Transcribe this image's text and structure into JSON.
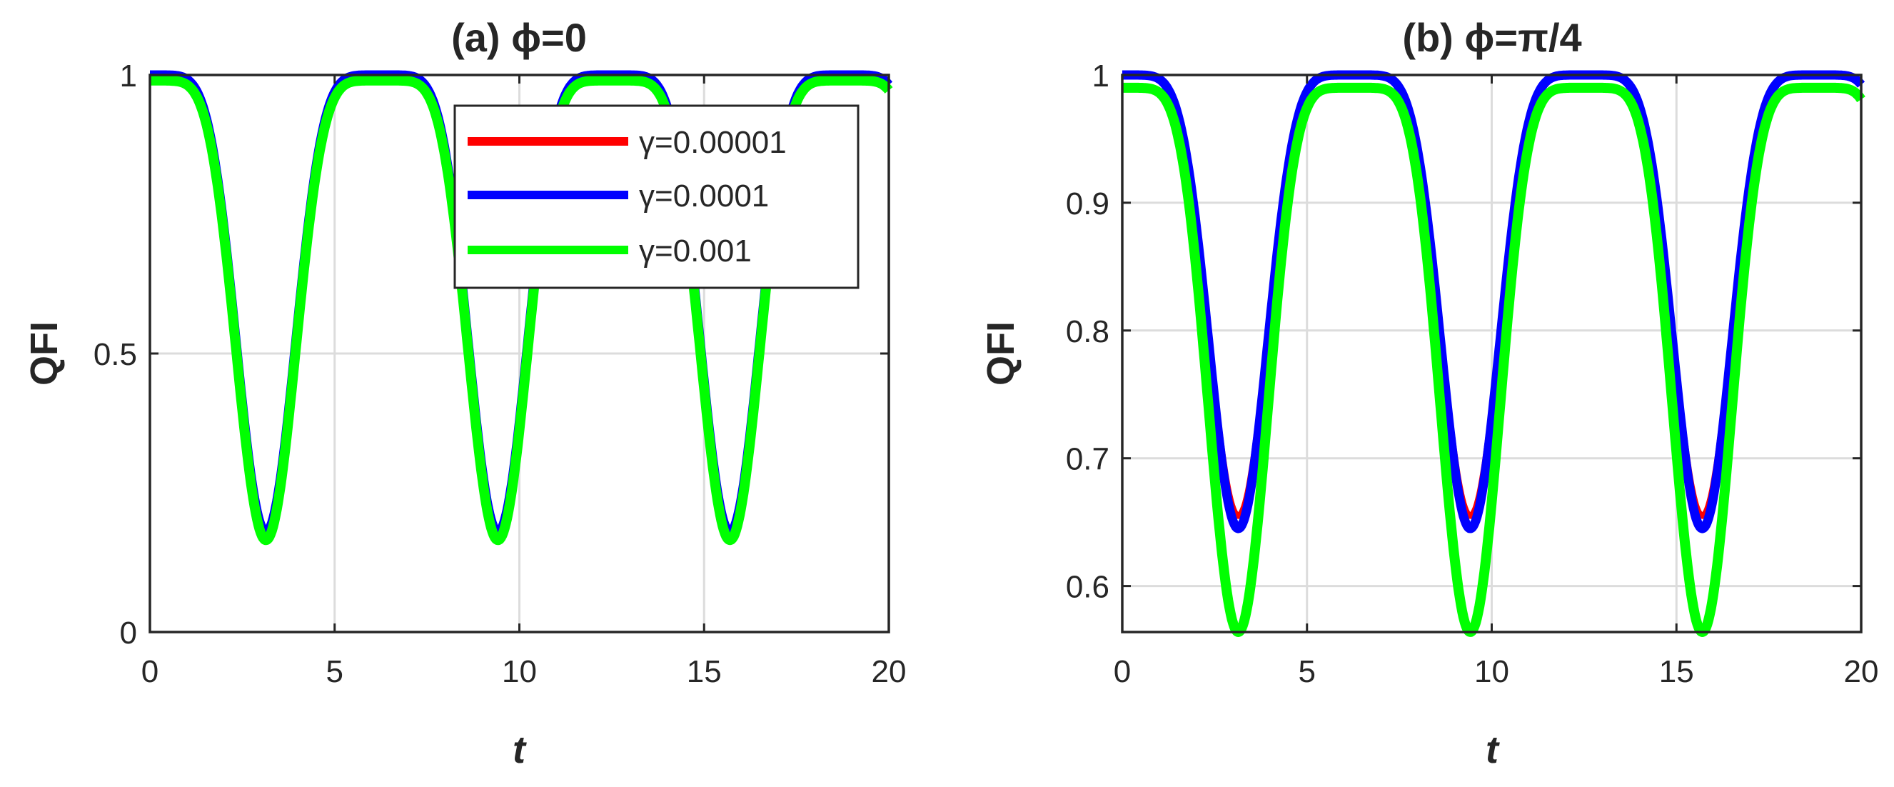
{
  "chart_data": [
    {
      "panel": "a",
      "type": "line",
      "title": "(a) ϕ=0",
      "xlabel": "t",
      "ylabel": "QFI",
      "xlim": [
        0,
        20
      ],
      "ylim": [
        0,
        1
      ],
      "xticks": [
        "0",
        "5",
        "10",
        "15",
        "20"
      ],
      "yticks": [
        "0",
        "0.5",
        "1"
      ],
      "xtick_values": [
        0,
        5,
        10,
        15,
        20
      ],
      "ytick_values": [
        0,
        0.5,
        1
      ],
      "grid": true,
      "legend_position": "top-right",
      "period": 6.28,
      "series": [
        {
          "name": "γ=0.00001",
          "color": "#ff0000",
          "line_width_rank": 1,
          "minimum": 0.18,
          "plateau_max": 1.0,
          "sample_points": {
            "x": [
              0,
              3.14,
              6.28,
              9.42,
              12.57,
              15.71,
              19.4
            ],
            "y": [
              1.0,
              0.18,
              1.0,
              0.18,
              1.0,
              0.18,
              0.99
            ]
          }
        },
        {
          "name": "γ=0.0001",
          "color": "#0000ff",
          "line_width_rank": 2,
          "minimum": 0.18,
          "plateau_max": 1.0,
          "sample_points": {
            "x": [
              0,
              3.14,
              6.28,
              9.42,
              12.57,
              15.71,
              19.4
            ],
            "y": [
              1.0,
              0.18,
              1.0,
              0.18,
              1.0,
              0.18,
              0.99
            ]
          }
        },
        {
          "name": "γ=0.001",
          "color": "#00ff00",
          "line_width_rank": 3,
          "minimum": 0.165,
          "plateau_max": 0.99,
          "sample_points": {
            "x": [
              0,
              3.14,
              6.28,
              9.42,
              12.57,
              15.71,
              19.4
            ],
            "y": [
              0.99,
              0.165,
              0.99,
              0.165,
              0.99,
              0.165,
              0.99
            ]
          }
        }
      ]
    },
    {
      "panel": "b",
      "type": "line",
      "title": "(b) ϕ=π/4",
      "xlabel": "t",
      "ylabel": "QFI",
      "xlim": [
        0,
        20
      ],
      "ylim": [
        0.564,
        1
      ],
      "xticks": [
        "0",
        "5",
        "10",
        "15",
        "20"
      ],
      "yticks": [
        "0.6",
        "0.7",
        "0.8",
        "0.9",
        "1"
      ],
      "xtick_values": [
        0,
        5,
        10,
        15,
        20
      ],
      "ytick_values": [
        0.6,
        0.7,
        0.8,
        0.9,
        1
      ],
      "grid": true,
      "legend_position": "none",
      "period": 6.28,
      "series": [
        {
          "name": "γ=0.00001",
          "color": "#ff0000",
          "line_width_rank": 1,
          "minimum": 0.655,
          "plateau_max": 1.0,
          "sample_points": {
            "x": [
              0,
              3.14,
              6.28,
              9.42,
              12.57,
              15.71,
              19.4
            ],
            "y": [
              1.0,
              0.655,
              1.0,
              0.655,
              1.0,
              0.655,
              1.0
            ]
          }
        },
        {
          "name": "γ=0.0001",
          "color": "#0000ff",
          "line_width_rank": 2,
          "minimum": 0.645,
          "plateau_max": 1.0,
          "sample_points": {
            "x": [
              0,
              3.14,
              6.28,
              9.42,
              12.57,
              15.71,
              19.4
            ],
            "y": [
              1.0,
              0.645,
              1.0,
              0.645,
              1.0,
              0.645,
              1.0
            ]
          }
        },
        {
          "name": "γ=0.001",
          "color": "#00ff00",
          "line_width_rank": 3,
          "minimum": 0.564,
          "plateau_max": 0.99,
          "sample_points": {
            "x": [
              0,
              3.14,
              6.28,
              9.42,
              12.57,
              15.71,
              19.4
            ],
            "y": [
              0.99,
              0.564,
              0.99,
              0.564,
              0.99,
              0.564,
              0.99
            ]
          }
        }
      ]
    }
  ]
}
